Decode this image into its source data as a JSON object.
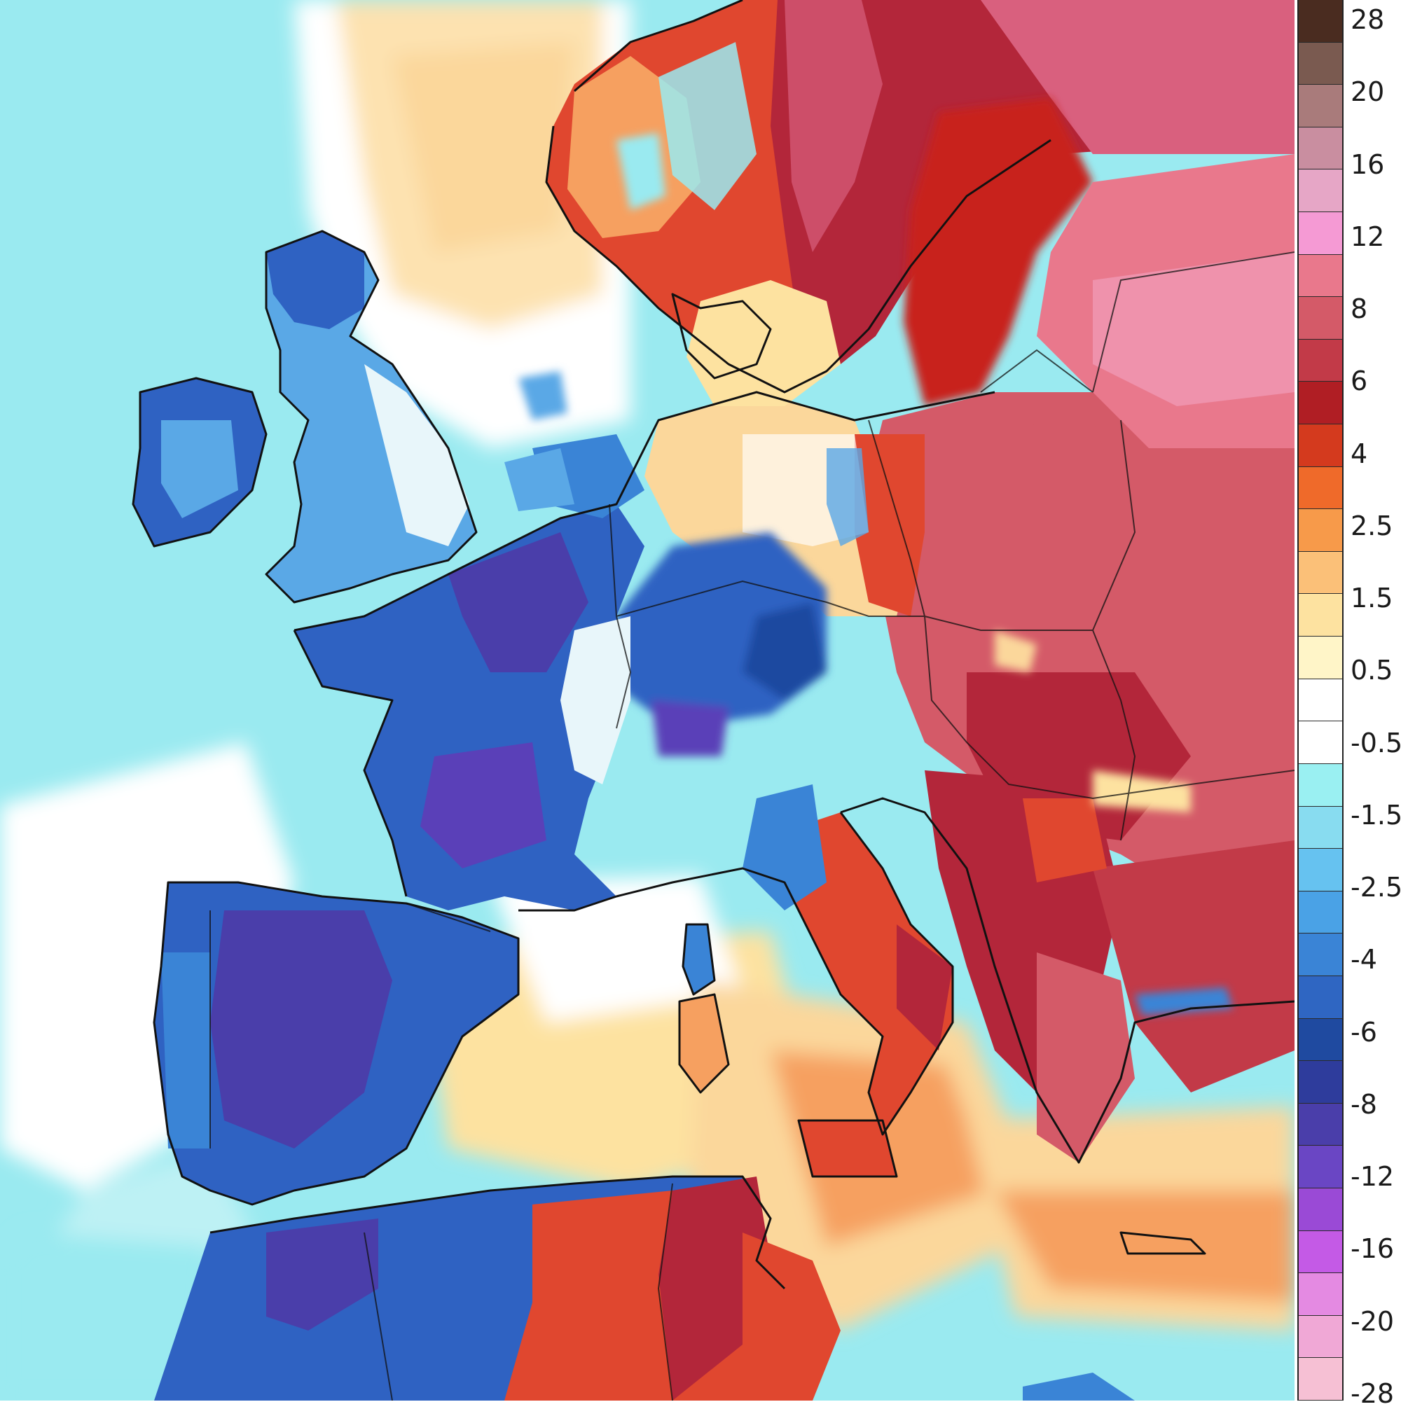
{
  "map": {
    "region": "Europe",
    "colors": {
      "ocean_cold": "#9aeaf0",
      "neutral": "#ffffff",
      "warm_light": "#fbd79b",
      "warm": "#f6a060",
      "hot": "#e0472f",
      "very_hot": "#b3263a",
      "extreme_hot": "#d9607e",
      "cold": "#5aa8e6",
      "very_cold": "#2f62c2",
      "extreme_cold": "#5a40b8",
      "coastline": "#111111"
    }
  },
  "legend": {
    "swatch_colors": [
      "#4a2c20",
      "#7a5a50",
      "#a97b7b",
      "#c98ea0",
      "#e6a6c6",
      "#f59ad4",
      "#e9788c",
      "#d45a68",
      "#c23a48",
      "#b01e24",
      "#d43a1e",
      "#ef6a2a",
      "#f79a4a",
      "#fbc078",
      "#fde2a0",
      "#fff5c8",
      "#ffffff",
      "#ffffff",
      "#9af0f2",
      "#88dcf0",
      "#66c2f0",
      "#4aa2e6",
      "#3a84d6",
      "#2f66c2",
      "#1f4aa0",
      "#2e3c9c",
      "#4a3eaa",
      "#6a46c4",
      "#9a4ad6",
      "#c45ae6",
      "#e48ae2",
      "#f0a8d6",
      "#f6c0d4"
    ],
    "labels": [
      "28",
      "20",
      "16",
      "12",
      "8",
      "6",
      "4",
      "2.5",
      "1.5",
      "0.5",
      "-0.5",
      "-1.5",
      "-2.5",
      "-4",
      "-6",
      "-8",
      "-12",
      "-16",
      "-20",
      "-28"
    ]
  }
}
